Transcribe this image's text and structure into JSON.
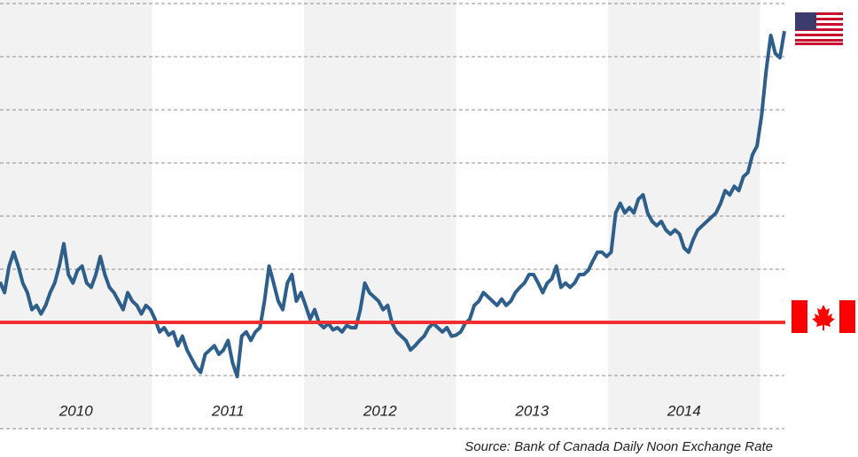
{
  "chart_data": {
    "type": "line",
    "source": "Source: Bank of Canada Daily Noon Exchange Rate",
    "x": [
      2010,
      2010.03,
      2010.06,
      2010.09,
      2010.12,
      2010.15,
      2010.18,
      2010.21,
      2010.24,
      2010.27,
      2010.3,
      2010.33,
      2010.36,
      2010.39,
      2010.42,
      2010.45,
      2010.48,
      2010.51,
      2010.54,
      2010.57,
      2010.6,
      2010.63,
      2010.66,
      2010.69,
      2010.72,
      2010.75,
      2010.78,
      2010.81,
      2010.84,
      2010.87,
      2010.9,
      2010.93,
      2010.96,
      2010.99,
      2011.02,
      2011.05,
      2011.08,
      2011.11,
      2011.14,
      2011.17,
      2011.2,
      2011.23,
      2011.26,
      2011.29,
      2011.32,
      2011.35,
      2011.38,
      2011.41,
      2011.44,
      2011.47,
      2011.5,
      2011.53,
      2011.56,
      2011.59,
      2011.62,
      2011.65,
      2011.68,
      2011.71,
      2011.74,
      2011.77,
      2011.8,
      2011.83,
      2011.86,
      2011.89,
      2011.92,
      2011.95,
      2011.98,
      2012.01,
      2012.04,
      2012.07,
      2012.1,
      2012.13,
      2012.16,
      2012.19,
      2012.22,
      2012.25,
      2012.28,
      2012.31,
      2012.34,
      2012.37,
      2012.4,
      2012.43,
      2012.46,
      2012.49,
      2012.52,
      2012.55,
      2012.58,
      2012.61,
      2012.64,
      2012.67,
      2012.7,
      2012.73,
      2012.76,
      2012.79,
      2012.82,
      2012.85,
      2012.88,
      2012.91,
      2012.94,
      2012.97,
      2013,
      2013.03,
      2013.06,
      2013.09,
      2013.12,
      2013.15,
      2013.18,
      2013.21,
      2013.24,
      2013.27,
      2013.3,
      2013.33,
      2013.36,
      2013.39,
      2013.42,
      2013.45,
      2013.48,
      2013.51,
      2013.54,
      2013.57,
      2013.6,
      2013.63,
      2013.66,
      2013.69,
      2013.72,
      2013.75,
      2013.78,
      2013.81,
      2013.84,
      2013.87,
      2013.9,
      2013.93,
      2013.96,
      2013.99,
      2014.02,
      2014.05,
      2014.08,
      2014.11,
      2014.14,
      2014.17,
      2014.2,
      2014.23,
      2014.26,
      2014.29,
      2014.32,
      2014.35,
      2014.38,
      2014.41,
      2014.44,
      2014.47,
      2014.5,
      2014.53,
      2014.56,
      2014.59,
      2014.62,
      2014.65,
      2014.68,
      2014.71,
      2014.74,
      2014.77,
      2014.8,
      2014.83,
      2014.86,
      2014.89,
      2014.92,
      2014.95,
      2014.98,
      2015.01,
      2015.04,
      2015.07,
      2015.1,
      2015.13,
      2015.16
    ],
    "values": [
      1.038,
      1.028,
      1.053,
      1.066,
      1.053,
      1.037,
      1.028,
      1.012,
      1.016,
      1.008,
      1.016,
      1.028,
      1.037,
      1.053,
      1.074,
      1.045,
      1.037,
      1.049,
      1.053,
      1.037,
      1.033,
      1.045,
      1.062,
      1.045,
      1.033,
      1.028,
      1.02,
      1.012,
      1.028,
      1.02,
      1.016,
      1.008,
      1.016,
      1.012,
      1.003,
      0.991,
      0.995,
      0.988,
      0.991,
      0.978,
      0.987,
      0.974,
      0.966,
      0.958,
      0.953,
      0.97,
      0.974,
      0.978,
      0.97,
      0.974,
      0.983,
      0.962,
      0.949,
      0.987,
      0.991,
      0.983,
      0.991,
      0.995,
      1.02,
      1.053,
      1.037,
      1.02,
      1.012,
      1.037,
      1.045,
      1.02,
      1.028,
      1.016,
      1.003,
      1.012,
      0.999,
      0.995,
      0.999,
      0.993,
      0.995,
      0.991,
      0.997,
      0.995,
      0.995,
      1.012,
      1.037,
      1.028,
      1.024,
      1.02,
      1.012,
      1.016,
      0.999,
      0.991,
      0.987,
      0.983,
      0.974,
      0.978,
      0.983,
      0.987,
      0.995,
      0.999,
      0.995,
      0.991,
      0.995,
      0.987,
      0.988,
      0.991,
      0.999,
      1.003,
      1.016,
      1.02,
      1.028,
      1.024,
      1.02,
      1.016,
      1.022,
      1.016,
      1.02,
      1.028,
      1.033,
      1.037,
      1.045,
      1.045,
      1.037,
      1.028,
      1.037,
      1.041,
      1.053,
      1.033,
      1.037,
      1.033,
      1.037,
      1.045,
      1.045,
      1.049,
      1.058,
      1.066,
      1.066,
      1.062,
      1.066,
      1.103,
      1.112,
      1.103,
      1.108,
      1.103,
      1.116,
      1.12,
      1.103,
      1.095,
      1.091,
      1.095,
      1.087,
      1.083,
      1.087,
      1.083,
      1.07,
      1.066,
      1.078,
      1.087,
      1.091,
      1.095,
      1.099,
      1.103,
      1.112,
      1.124,
      1.12,
      1.128,
      1.124,
      1.137,
      1.141,
      1.158,
      1.166,
      1.195,
      1.237,
      1.27,
      1.253,
      1.249,
      1.274
    ],
    "color": "#2e5f8a",
    "xlim": [
      2010,
      2015.16
    ],
    "xticks": [
      2010,
      2011,
      2012,
      2013,
      2014
    ],
    "ylim": [
      0.9,
      1.3
    ],
    "yticks": [
      0.9,
      0.95,
      1,
      1.05,
      1.1,
      1.15,
      1.2,
      1.25,
      1.3
    ],
    "grid": true,
    "reference_line": 1,
    "reference_color": "#f03030"
  }
}
